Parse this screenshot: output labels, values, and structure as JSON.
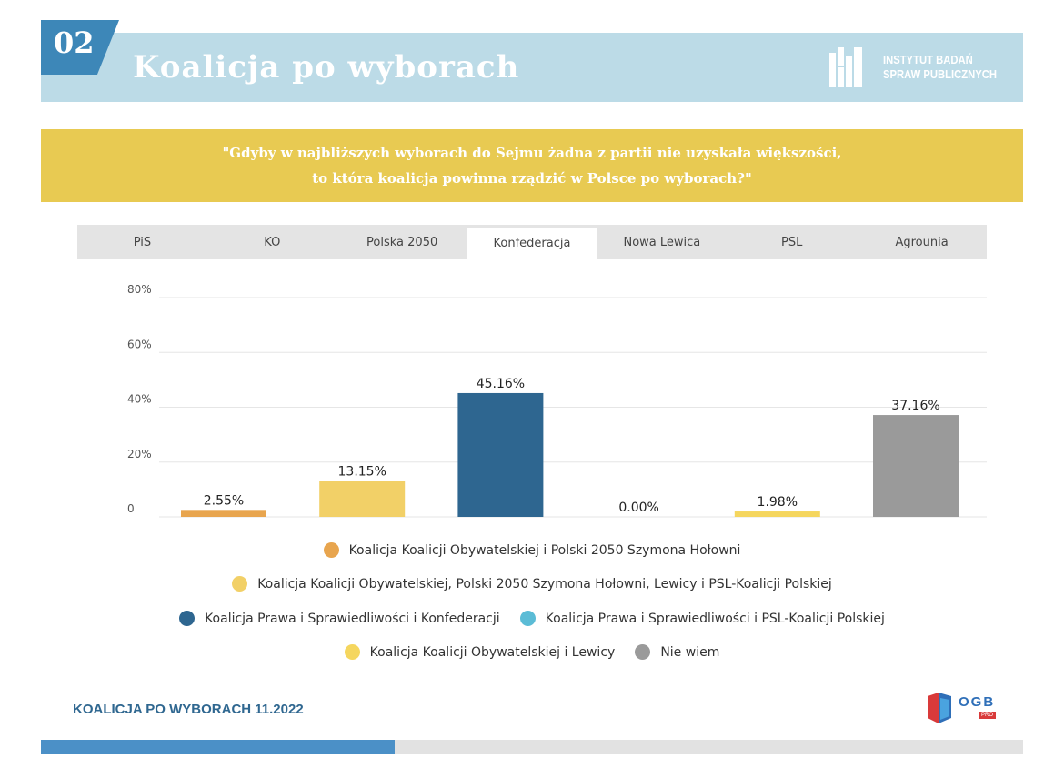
{
  "header": {
    "number": "02",
    "title": "Koalicja po wyborach",
    "logo_line1": "INSTYTUT BADAŃ",
    "logo_line2": "SPRAW PUBLICZNYCH"
  },
  "question": {
    "line1": "\"Gdyby w najbliższych wyborach do Sejmu żadna z partii nie uzyskała większości,",
    "line2": "to która koalicja powinna rządzić w Polsce po wyborach?\""
  },
  "tabs": [
    {
      "label": "PiS"
    },
    {
      "label": "KO"
    },
    {
      "label": "Polska 2050"
    },
    {
      "label": "Konfederacja",
      "active": true
    },
    {
      "label": "Nowa Lewica"
    },
    {
      "label": "PSL"
    },
    {
      "label": "Agrounia"
    }
  ],
  "chart_data": {
    "type": "bar",
    "ylim": [
      0,
      80
    ],
    "ytick_values": [
      0,
      20,
      40,
      60,
      80
    ],
    "ytick_labels": [
      "0",
      "20%",
      "40%",
      "60%",
      "80%"
    ],
    "grid": true,
    "legend_position": "bottom",
    "series": [
      {
        "name": "Koalicja Koalicji Obywatelskiej i Polski 2050 Szymona Hołowni",
        "value": 2.55,
        "label": "2.55%",
        "color": "#e8a54e"
      },
      {
        "name": "Koalicja Koalicji Obywatelskiej, Polski 2050 Szymona Hołowni, Lewicy i PSL-Koalicji Polskiej",
        "value": 13.15,
        "label": "13.15%",
        "color": "#f2d067"
      },
      {
        "name": "Koalicja Prawa i Sprawiedliwości i Konfederacji",
        "value": 45.16,
        "label": "45.16%",
        "color": "#2e6690"
      },
      {
        "name": "Koalicja Prawa i Sprawiedliwości i PSL-Koalicji Polskiej",
        "value": 0.0,
        "label": "0.00%",
        "color": "#5bbcd6"
      },
      {
        "name": "Koalicja Koalicji Obywatelskiej i Lewicy",
        "value": 1.98,
        "label": "1.98%",
        "color": "#f5d65e"
      },
      {
        "name": "Nie wiem",
        "value": 37.16,
        "label": "37.16%",
        "color": "#9a9a9a"
      }
    ]
  },
  "footer": {
    "label": "KOALICJA PO WYBORACH 11.2022",
    "ogb_text": "OGB",
    "ogb_sub": "PRO",
    "progress": 0.36
  }
}
